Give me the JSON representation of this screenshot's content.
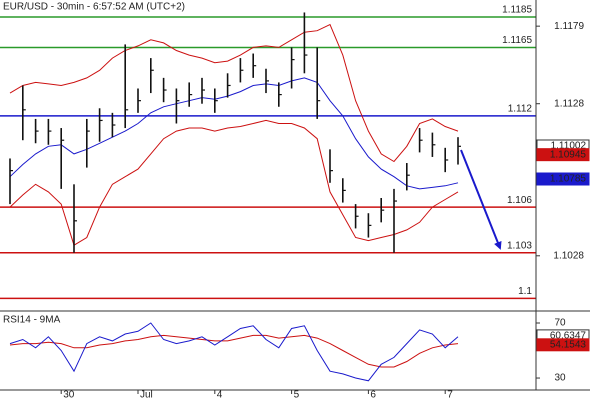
{
  "chart_data": {
    "type": "ohlc",
    "title": "EUR/USD - 30min - 6:57:52 AM (UTC+2)",
    "categories": [
      null,
      null,
      null,
      null,
      "30",
      null,
      null,
      null,
      null,
      null,
      "Jul",
      null,
      null,
      null,
      null,
      null,
      "4",
      null,
      null,
      null,
      null,
      null,
      "5",
      null,
      null,
      null,
      null,
      null,
      "6",
      null,
      null,
      null,
      null,
      null,
      "7",
      null
    ],
    "close": [
      1.1084,
      1.1124,
      1.111,
      1.111,
      1.1104,
      1.1051,
      1.111,
      1.1117,
      1.1114,
      1.1124,
      1.113,
      1.115,
      1.1137,
      1.113,
      1.1134,
      1.1137,
      1.113,
      1.114,
      1.115,
      1.1153,
      1.1143,
      1.1134,
      1.1157,
      1.116,
      1.113,
      1.1084,
      1.1071,
      1.1054,
      1.1048,
      1.1058,
      1.1064,
      1.1081,
      1.1104,
      1.1101,
      1.1091,
      1.11
    ],
    "high": [
      1.1092,
      1.114,
      1.1118,
      1.1118,
      1.1112,
      1.1075,
      1.1118,
      1.1125,
      1.1122,
      1.1167,
      1.1138,
      1.1158,
      1.1145,
      1.1138,
      1.1142,
      1.1145,
      1.1138,
      1.1148,
      1.1158,
      1.1161,
      1.1151,
      1.1142,
      1.1165,
      1.1188,
      1.1165,
      1.1098,
      1.1079,
      1.1062,
      1.1056,
      1.1066,
      1.1072,
      1.1089,
      1.1112,
      1.1109,
      1.1099,
      1.1106
    ],
    "low": [
      1.1062,
      1.1104,
      1.1102,
      1.1101,
      1.1072,
      1.103,
      1.1086,
      1.1103,
      1.1106,
      1.1112,
      1.1122,
      1.1135,
      1.1129,
      1.1115,
      1.1126,
      1.1128,
      1.1122,
      1.1132,
      1.1142,
      1.1145,
      1.1135,
      1.1126,
      1.1138,
      1.1148,
      1.1118,
      1.1076,
      1.1063,
      1.1046,
      1.104,
      1.105,
      1.103,
      1.1071,
      1.1096,
      1.1093,
      1.1083,
      1.1088
    ],
    "bar_color": "#111111",
    "bands": {
      "upper": [
        1.1135,
        1.114,
        1.1142,
        1.1141,
        1.114,
        1.1142,
        1.1145,
        1.115,
        1.1158,
        1.1163,
        1.1166,
        1.117,
        1.1168,
        1.1163,
        1.116,
        1.1158,
        1.1155,
        1.1156,
        1.116,
        1.1165,
        1.1166,
        1.1165,
        1.117,
        1.1175,
        1.1176,
        1.118,
        1.116,
        1.113,
        1.111,
        1.1095,
        1.109,
        1.11,
        1.1115,
        1.1118,
        1.1113,
        1.111
      ],
      "lower": [
        1.106,
        1.1068,
        1.1075,
        1.107,
        1.1062,
        1.1035,
        1.104,
        1.106,
        1.1075,
        1.108,
        1.1085,
        1.1095,
        1.1105,
        1.111,
        1.1112,
        1.1112,
        1.111,
        1.1112,
        1.1113,
        1.1115,
        1.1117,
        1.1115,
        1.1115,
        1.1112,
        1.1105,
        1.107,
        1.1055,
        1.104,
        1.1038,
        1.104,
        1.1042,
        1.1045,
        1.105,
        1.106,
        1.1065,
        1.107
      ],
      "ma": [
        1.108,
        1.1088,
        1.1095,
        1.11,
        1.1101,
        1.1095,
        1.1098,
        1.1102,
        1.1106,
        1.111,
        1.1115,
        1.1122,
        1.1126,
        1.1128,
        1.113,
        1.1132,
        1.1131,
        1.1133,
        1.1136,
        1.114,
        1.1141,
        1.114,
        1.1143,
        1.1145,
        1.1142,
        1.113,
        1.112,
        1.1105,
        1.1093,
        1.1085,
        1.108,
        1.1074,
        1.1072,
        1.1073,
        1.1074,
        1.1076
      ],
      "band_color": "#cc1111",
      "ma_color": "#1a1acc"
    },
    "ylim": [
      1.09917,
      1.11962
    ],
    "yticks": [
      1.1179,
      1.1128,
      1.1028
    ],
    "levels": [
      {
        "value": 1.1185,
        "color": "#2a9a2a"
      },
      {
        "value": 1.1165,
        "color": "#2a9a2a"
      },
      {
        "value": 1.112,
        "color": "#1a1acc"
      },
      {
        "value": 1.106,
        "color": "#cc1111"
      },
      {
        "value": 1.103,
        "color": "#cc1111"
      },
      {
        "value": 1.1,
        "color": "#cc1111"
      }
    ],
    "price_tags": [
      {
        "value": 1.11002,
        "color": "#ffffff"
      },
      {
        "value": 1.10945,
        "color": "#cc1111"
      },
      {
        "value": 1.10785,
        "color": "#1a1acc"
      }
    ],
    "rsi": {
      "title": "RSI14 - 9MA",
      "ylim": [
        21.3,
        78
      ],
      "yticks": [
        70,
        30
      ],
      "values": [
        55,
        58,
        52,
        60,
        50,
        35,
        55,
        60,
        57,
        62,
        64,
        70,
        58,
        55,
        57,
        60,
        54,
        60,
        66,
        68,
        58,
        52,
        66,
        68,
        50,
        35,
        33,
        30,
        28,
        40,
        45,
        55,
        65,
        62,
        52,
        60
      ],
      "ma": [
        54,
        55,
        55,
        56,
        55,
        52,
        52,
        54,
        55,
        57,
        58,
        60,
        61,
        60,
        59,
        58,
        57,
        57,
        59,
        61,
        61,
        59,
        60,
        61,
        59,
        55,
        50,
        45,
        40,
        38,
        38,
        42,
        48,
        52,
        54,
        55
      ],
      "color": "#1a1acc",
      "ma_color": "#cc1111",
      "tags": [
        {
          "value": 60.6347,
          "color": "#ffffff"
        },
        {
          "value": 54.1543,
          "color": "#cc1111"
        }
      ]
    }
  }
}
